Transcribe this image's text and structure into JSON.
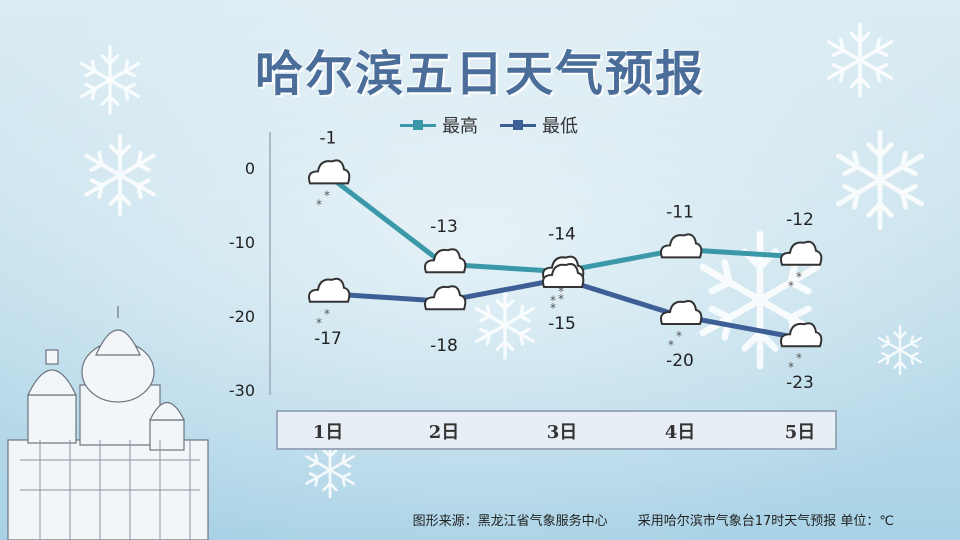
{
  "title": "哈尔滨五日天气预报",
  "footer": {
    "source": "图形来源：黑龙江省气象服务中心",
    "note": "采用哈尔滨市气象台17时天气预报 单位：℃"
  },
  "colors": {
    "high": "#3b98a8",
    "low": "#3d5f96",
    "background": "#cfe6ef",
    "title": "#4a6e99"
  },
  "chart_data": {
    "type": "line",
    "categories": [
      "1日",
      "2日",
      "3日",
      "4日",
      "5日"
    ],
    "series": [
      {
        "name": "最高",
        "values": [
          -1,
          -13,
          -14,
          -11,
          -12
        ]
      },
      {
        "name": "最低",
        "values": [
          -17,
          -18,
          -15,
          -20,
          -23
        ]
      }
    ],
    "ylim": [
      -30,
      0
    ],
    "yticks": [
      0,
      -10,
      -20,
      -30
    ],
    "weather_icons": [
      "snow-cloud",
      "cloud",
      "snow-cloud",
      "cloud",
      "snow-cloud"
    ],
    "low_weather_icons": [
      "snow-cloud",
      "cloud",
      "snow-cloud",
      "snow-cloud",
      "snow-cloud"
    ],
    "legend": "top-center",
    "grid": false
  }
}
